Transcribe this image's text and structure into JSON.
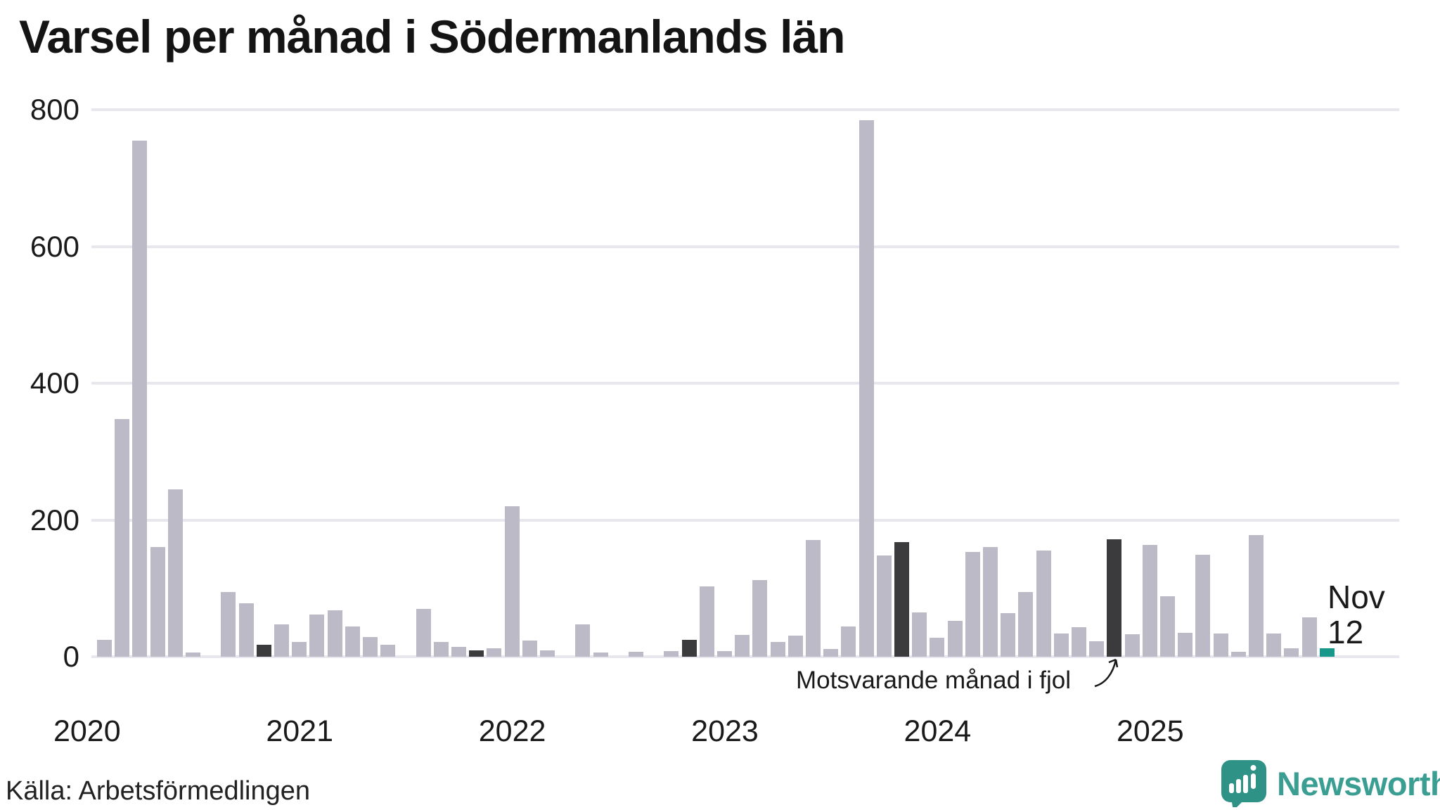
{
  "title": "Varsel per månad i Södermanlands län",
  "source": "Källa: Arbetsförmedlingen",
  "annotation": {
    "text": "Motsvarande månad i fjol"
  },
  "last_point_label": {
    "month": "Nov",
    "value": "12"
  },
  "x_axis": {
    "years": [
      "2020",
      "2021",
      "2022",
      "2023",
      "2024",
      "2025"
    ]
  },
  "logo": {
    "text": "Newsworthy"
  },
  "colors": {
    "bar": "#bcbac6",
    "previous_november": "#3b3b3d",
    "current_month": "#17988b",
    "gridline": "#e8e7ed",
    "text": "#1a1a1a",
    "logo_teal": "#2f9287"
  },
  "chart_data": {
    "type": "bar",
    "title": "Varsel per månad i Södermanlands län",
    "xlabel": "",
    "ylabel": "",
    "ylim": [
      0,
      800
    ],
    "yticks": [
      0,
      200,
      400,
      600,
      800
    ],
    "grid": "horizontal",
    "legend_position": "none",
    "annotation_target": "2024-11",
    "months": [
      {
        "month": "2020-02",
        "value": 25,
        "variant": "normal"
      },
      {
        "month": "2020-03",
        "value": 348,
        "variant": "normal"
      },
      {
        "month": "2020-04",
        "value": 755,
        "variant": "normal"
      },
      {
        "month": "2020-05",
        "value": 160,
        "variant": "normal"
      },
      {
        "month": "2020-06",
        "value": 245,
        "variant": "normal"
      },
      {
        "month": "2020-07",
        "value": 6,
        "variant": "normal"
      },
      {
        "month": "2020-08",
        "value": 0,
        "variant": "normal"
      },
      {
        "month": "2020-09",
        "value": 95,
        "variant": "normal"
      },
      {
        "month": "2020-10",
        "value": 78,
        "variant": "normal"
      },
      {
        "month": "2020-11",
        "value": 17,
        "variant": "fjol"
      },
      {
        "month": "2020-12",
        "value": 47,
        "variant": "normal"
      },
      {
        "month": "2021-01",
        "value": 22,
        "variant": "normal"
      },
      {
        "month": "2021-02",
        "value": 62,
        "variant": "normal"
      },
      {
        "month": "2021-03",
        "value": 68,
        "variant": "normal"
      },
      {
        "month": "2021-04",
        "value": 44,
        "variant": "normal"
      },
      {
        "month": "2021-05",
        "value": 29,
        "variant": "normal"
      },
      {
        "month": "2021-06",
        "value": 18,
        "variant": "normal"
      },
      {
        "month": "2021-07",
        "value": 0,
        "variant": "normal"
      },
      {
        "month": "2021-08",
        "value": 70,
        "variant": "normal"
      },
      {
        "month": "2021-09",
        "value": 22,
        "variant": "normal"
      },
      {
        "month": "2021-10",
        "value": 14,
        "variant": "normal"
      },
      {
        "month": "2021-11",
        "value": 9,
        "variant": "fjol"
      },
      {
        "month": "2021-12",
        "value": 12,
        "variant": "normal"
      },
      {
        "month": "2022-01",
        "value": 220,
        "variant": "normal"
      },
      {
        "month": "2022-02",
        "value": 24,
        "variant": "normal"
      },
      {
        "month": "2022-03",
        "value": 9,
        "variant": "normal"
      },
      {
        "month": "2022-04",
        "value": 0,
        "variant": "normal"
      },
      {
        "month": "2022-05",
        "value": 47,
        "variant": "normal"
      },
      {
        "month": "2022-06",
        "value": 6,
        "variant": "normal"
      },
      {
        "month": "2022-07",
        "value": 0,
        "variant": "normal"
      },
      {
        "month": "2022-08",
        "value": 7,
        "variant": "normal"
      },
      {
        "month": "2022-09",
        "value": 0,
        "variant": "normal"
      },
      {
        "month": "2022-10",
        "value": 8,
        "variant": "normal"
      },
      {
        "month": "2022-11",
        "value": 25,
        "variant": "fjol"
      },
      {
        "month": "2022-12",
        "value": 103,
        "variant": "normal"
      },
      {
        "month": "2023-01",
        "value": 8,
        "variant": "normal"
      },
      {
        "month": "2023-02",
        "value": 32,
        "variant": "normal"
      },
      {
        "month": "2023-03",
        "value": 112,
        "variant": "normal"
      },
      {
        "month": "2023-04",
        "value": 22,
        "variant": "normal"
      },
      {
        "month": "2023-05",
        "value": 31,
        "variant": "normal"
      },
      {
        "month": "2023-06",
        "value": 171,
        "variant": "normal"
      },
      {
        "month": "2023-07",
        "value": 11,
        "variant": "normal"
      },
      {
        "month": "2023-08",
        "value": 44,
        "variant": "normal"
      },
      {
        "month": "2023-09",
        "value": 785,
        "variant": "normal"
      },
      {
        "month": "2023-10",
        "value": 148,
        "variant": "normal"
      },
      {
        "month": "2023-11",
        "value": 168,
        "variant": "fjol"
      },
      {
        "month": "2023-12",
        "value": 65,
        "variant": "normal"
      },
      {
        "month": "2024-01",
        "value": 28,
        "variant": "normal"
      },
      {
        "month": "2024-02",
        "value": 52,
        "variant": "normal"
      },
      {
        "month": "2024-03",
        "value": 153,
        "variant": "normal"
      },
      {
        "month": "2024-04",
        "value": 160,
        "variant": "normal"
      },
      {
        "month": "2024-05",
        "value": 64,
        "variant": "normal"
      },
      {
        "month": "2024-06",
        "value": 95,
        "variant": "normal"
      },
      {
        "month": "2024-07",
        "value": 155,
        "variant": "normal"
      },
      {
        "month": "2024-08",
        "value": 34,
        "variant": "normal"
      },
      {
        "month": "2024-09",
        "value": 43,
        "variant": "normal"
      },
      {
        "month": "2024-10",
        "value": 23,
        "variant": "normal"
      },
      {
        "month": "2024-11",
        "value": 172,
        "variant": "fjol"
      },
      {
        "month": "2024-12",
        "value": 33,
        "variant": "normal"
      },
      {
        "month": "2025-01",
        "value": 163,
        "variant": "normal"
      },
      {
        "month": "2025-02",
        "value": 88,
        "variant": "normal"
      },
      {
        "month": "2025-03",
        "value": 35,
        "variant": "normal"
      },
      {
        "month": "2025-04",
        "value": 149,
        "variant": "normal"
      },
      {
        "month": "2025-05",
        "value": 34,
        "variant": "normal"
      },
      {
        "month": "2025-06",
        "value": 7,
        "variant": "normal"
      },
      {
        "month": "2025-07",
        "value": 178,
        "variant": "normal"
      },
      {
        "month": "2025-08",
        "value": 34,
        "variant": "normal"
      },
      {
        "month": "2025-09",
        "value": 12,
        "variant": "normal"
      },
      {
        "month": "2025-10",
        "value": 58,
        "variant": "normal"
      },
      {
        "month": "2025-11",
        "value": 12,
        "variant": "current"
      }
    ]
  }
}
